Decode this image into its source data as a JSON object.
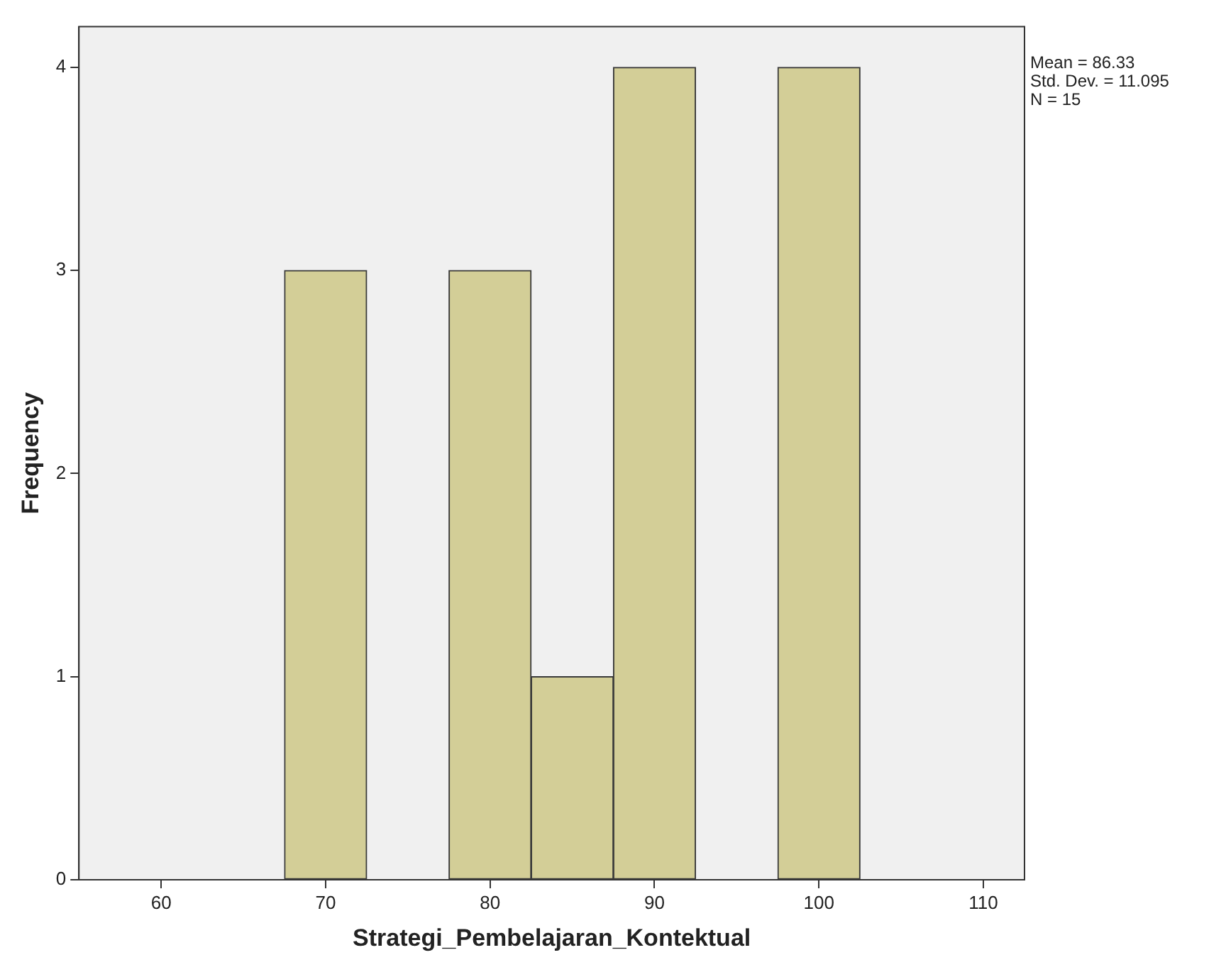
{
  "chart_data": {
    "type": "histogram",
    "xlabel": "Strategi_Pembelajaran_Kontektual",
    "ylabel": "Frequency",
    "bins": [
      67.5,
      72.5,
      77.5,
      82.5,
      87.5,
      92.5,
      97.5,
      102.5
    ],
    "values": [
      3,
      0,
      3,
      1,
      4,
      0,
      4
    ],
    "color": "#d3ce97",
    "xlim": [
      55,
      112.5
    ],
    "xticks": [
      60,
      70,
      80,
      90,
      100,
      110
    ],
    "ylim": [
      0,
      4.2
    ],
    "yticks": [
      0,
      1,
      2,
      3,
      4
    ],
    "grid": false,
    "legend": false,
    "annotations": [
      "Mean = 86.33",
      "Std. Dev. = 11.095",
      "N = 15"
    ]
  }
}
